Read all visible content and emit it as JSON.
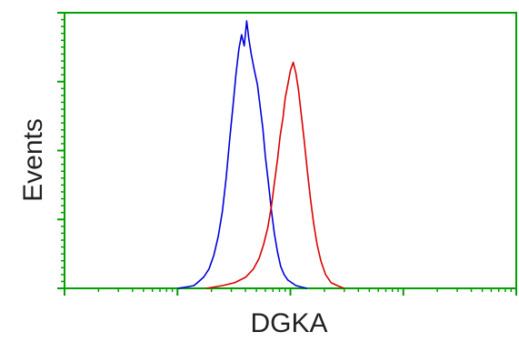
{
  "chart_data": {
    "type": "line",
    "title": "",
    "xlabel": "DGKA",
    "ylabel": "Events",
    "x_scale": "log",
    "xlim": [
      1,
      10000
    ],
    "ylim": [
      0,
      100
    ],
    "grid": false,
    "legend": "none",
    "frame_color": "#00a000",
    "series": [
      {
        "color": "#0000dd",
        "x": [
          10,
          12,
          14,
          15,
          17,
          19,
          21,
          23,
          25,
          27,
          29,
          31,
          33,
          35,
          37,
          39,
          41,
          43,
          45,
          48,
          51,
          54,
          57,
          60,
          64,
          68,
          72,
          77,
          82,
          88,
          95,
          103,
          112,
          125,
          140
        ],
        "y": [
          0,
          0.5,
          1,
          2,
          4,
          7,
          12,
          19,
          28,
          40,
          54,
          66,
          78,
          87,
          92,
          88,
          97,
          90,
          85,
          79,
          74,
          66,
          58,
          48,
          38,
          28,
          20,
          13,
          8,
          5,
          3,
          2,
          1,
          0.5,
          0
        ]
      },
      {
        "color": "#dd0000",
        "x": [
          18,
          25,
          32,
          40,
          47,
          53,
          58,
          63,
          68,
          72,
          77,
          81,
          86,
          90,
          95,
          100,
          106,
          112,
          118,
          125,
          133,
          141,
          150,
          160,
          172,
          186,
          205,
          230,
          260,
          300
        ],
        "y": [
          0,
          1,
          2,
          4,
          7,
          11,
          16,
          22,
          30,
          38,
          47,
          55,
          62,
          69,
          74,
          79,
          82,
          78,
          72,
          63,
          53,
          43,
          33,
          24,
          16,
          10,
          5,
          2,
          1,
          0
        ]
      }
    ]
  }
}
